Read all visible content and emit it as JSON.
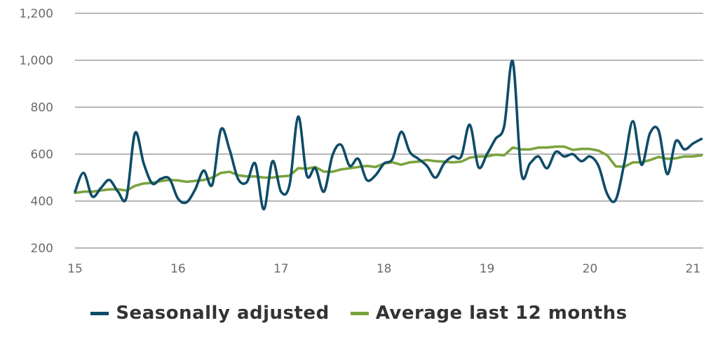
{
  "chart_data": {
    "type": "line",
    "title": "",
    "xlabel": "",
    "ylabel": "",
    "xlim": [
      15,
      21.1
    ],
    "ylim": [
      200,
      1200
    ],
    "x_ticks": [
      15,
      16,
      17,
      18,
      19,
      20,
      21
    ],
    "x_tick_labels": [
      "15",
      "16",
      "17",
      "18",
      "19",
      "20",
      "21"
    ],
    "y_ticks": [
      200,
      400,
      600,
      800,
      1000,
      1200
    ],
    "y_tick_labels": [
      "200",
      "400",
      "600",
      "800",
      "1,000",
      "1,200"
    ],
    "grid": "horizontal",
    "legend_position": "bottom",
    "colors": {
      "seasonally_adjusted": "#0f4c68",
      "average": "#7aa33d",
      "grid": "#8c8c8c"
    },
    "series": [
      {
        "name": "Seasonally adjusted",
        "x": [
          15.0,
          15.083,
          15.167,
          15.25,
          15.333,
          15.417,
          15.5,
          15.583,
          15.667,
          15.75,
          15.833,
          15.917,
          16.0,
          16.083,
          16.167,
          16.25,
          16.333,
          16.417,
          16.5,
          16.583,
          16.667,
          16.75,
          16.833,
          16.917,
          17.0,
          17.083,
          17.167,
          17.25,
          17.333,
          17.417,
          17.5,
          17.583,
          17.667,
          17.75,
          17.833,
          17.917,
          18.0,
          18.083,
          18.167,
          18.25,
          18.333,
          18.417,
          18.5,
          18.583,
          18.667,
          18.75,
          18.833,
          18.917,
          19.0,
          19.083,
          19.167,
          19.25,
          19.333,
          19.417,
          19.5,
          19.583,
          19.667,
          19.75,
          19.833,
          19.917,
          20.0,
          20.083,
          20.167,
          20.25,
          20.333,
          20.417,
          20.5,
          20.583,
          20.667,
          20.75,
          20.833,
          20.917,
          21.0,
          21.083
        ],
        "values": [
          440,
          520,
          420,
          455,
          490,
          440,
          415,
          690,
          560,
          475,
          495,
          495,
          410,
          395,
          450,
          530,
          470,
          705,
          620,
          495,
          480,
          560,
          365,
          570,
          440,
          470,
          760,
          510,
          540,
          440,
          595,
          640,
          550,
          580,
          490,
          510,
          560,
          580,
          695,
          610,
          580,
          550,
          500,
          560,
          590,
          590,
          725,
          545,
          600,
          665,
          720,
          995,
          520,
          560,
          590,
          540,
          610,
          590,
          600,
          570,
          590,
          550,
          430,
          405,
          560,
          740,
          555,
          690,
          700,
          515,
          655,
          620,
          645,
          665
        ]
      },
      {
        "name": "Average last 12 months",
        "x": [
          15.0,
          15.083,
          15.167,
          15.25,
          15.333,
          15.417,
          15.5,
          15.583,
          15.667,
          15.75,
          15.833,
          15.917,
          16.0,
          16.083,
          16.167,
          16.25,
          16.333,
          16.417,
          16.5,
          16.583,
          16.667,
          16.75,
          16.833,
          16.917,
          17.0,
          17.083,
          17.167,
          17.25,
          17.333,
          17.417,
          17.5,
          17.583,
          17.667,
          17.75,
          17.833,
          17.917,
          18.0,
          18.083,
          18.167,
          18.25,
          18.333,
          18.417,
          18.5,
          18.583,
          18.667,
          18.75,
          18.833,
          18.917,
          19.0,
          19.083,
          19.167,
          19.25,
          19.333,
          19.417,
          19.5,
          19.583,
          19.667,
          19.75,
          19.833,
          19.917,
          20.0,
          20.083,
          20.167,
          20.25,
          20.333,
          20.417,
          20.5,
          20.583,
          20.667,
          20.75,
          20.833,
          20.917,
          21.0,
          21.083
        ],
        "values": [
          435,
          440,
          440,
          445,
          450,
          450,
          445,
          465,
          475,
          478,
          485,
          490,
          488,
          482,
          486,
          490,
          500,
          520,
          525,
          510,
          505,
          505,
          500,
          500,
          505,
          508,
          540,
          538,
          545,
          525,
          525,
          535,
          540,
          545,
          550,
          545,
          560,
          565,
          555,
          565,
          568,
          575,
          570,
          568,
          565,
          568,
          585,
          590,
          590,
          598,
          595,
          628,
          620,
          620,
          628,
          628,
          632,
          632,
          618,
          622,
          622,
          615,
          595,
          548,
          546,
          565,
          565,
          575,
          588,
          580,
          582,
          590,
          590,
          595
        ]
      }
    ]
  }
}
